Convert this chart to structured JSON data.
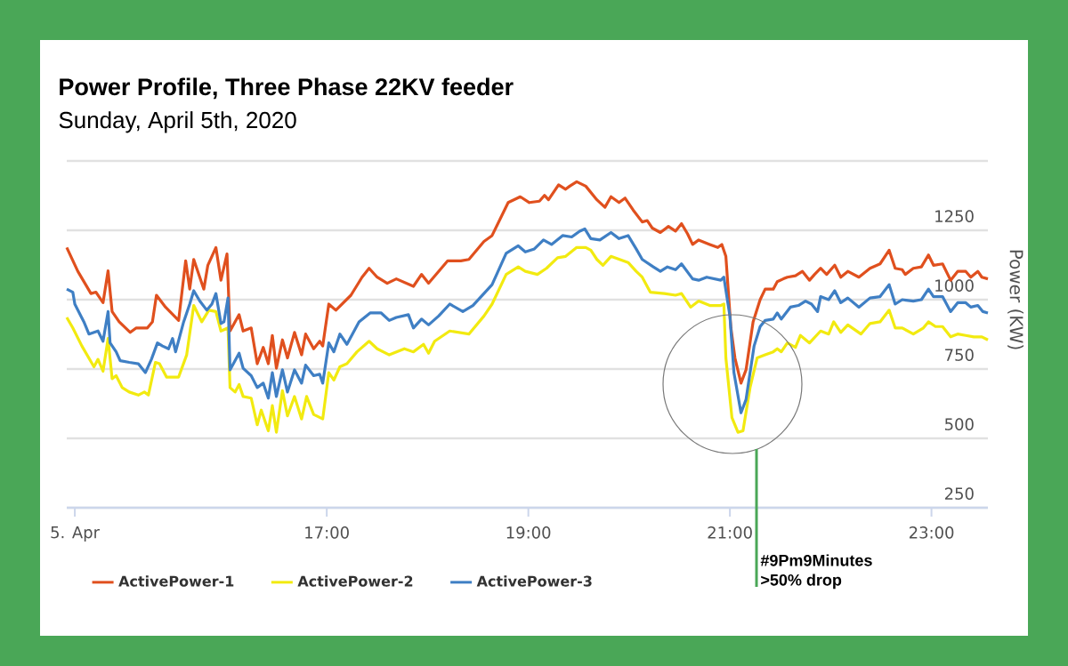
{
  "chart_data": {
    "type": "line",
    "title": "Power Profile, Three Phase 22KV feeder",
    "subtitle": "Sunday, April 5th, 2020",
    "ylabel": "Power (KW)",
    "xlim": [
      14.42,
      23.56
    ],
    "xticks": [
      {
        "value": 14.5,
        "label": "5. Apr"
      },
      {
        "value": 17,
        "label": "17:00"
      },
      {
        "value": 19,
        "label": "19:00"
      },
      {
        "value": 21,
        "label": "21:00"
      },
      {
        "value": 23,
        "label": "23:00"
      }
    ],
    "ylim": [
      250,
      1500
    ],
    "yticks": [
      250,
      500,
      750,
      1000,
      1250,
      {
        "value": 1500,
        "label": null
      }
    ],
    "grid": "y",
    "legend": "bottom",
    "marker": "none",
    "annotations": [
      "#9Pm9Minutes",
      ">50% drop"
    ],
    "series": [
      {
        "name": "ActivePower-1",
        "color": "#e0501e",
        "x": [
          14.42,
          14.53,
          14.66,
          14.71,
          14.78,
          14.83,
          14.87,
          14.94,
          15.05,
          15.11,
          15.22,
          15.27,
          15.31,
          15.4,
          15.53,
          15.6,
          15.64,
          15.68,
          15.78,
          15.82,
          15.9,
          15.95,
          16.01,
          16.04,
          16.13,
          16.17,
          16.25,
          16.31,
          16.37,
          16.42,
          16.46,
          16.5,
          16.56,
          16.61,
          16.68,
          16.75,
          16.79,
          16.87,
          16.93,
          16.96,
          17.02,
          17.09,
          17.24,
          17.35,
          17.42,
          17.5,
          17.6,
          17.69,
          17.86,
          17.94,
          18.01,
          18.11,
          18.2,
          18.33,
          18.41,
          18.56,
          18.64,
          18.8,
          18.92,
          19.01,
          19.11,
          19.16,
          19.2,
          19.3,
          19.37,
          19.41,
          19.48,
          19.57,
          19.68,
          19.76,
          19.82,
          19.9,
          19.96,
          20.04,
          20.13,
          20.18,
          20.23,
          20.31,
          20.39,
          20.46,
          20.52,
          20.58,
          20.63,
          20.69,
          20.8,
          20.88,
          20.92,
          20.96,
          21.01,
          21.05,
          21.11,
          21.16,
          21.23,
          21.3,
          21.35,
          21.43,
          21.47,
          21.53,
          21.57,
          21.65,
          21.72,
          21.79,
          21.84,
          21.9,
          21.96,
          22.04,
          22.1,
          22.17,
          22.28,
          22.39,
          22.49,
          22.58,
          22.64,
          22.71,
          22.74,
          22.82,
          22.9,
          22.97,
          23.02,
          23.11,
          23.19,
          23.26,
          23.34,
          23.39,
          23.46,
          23.5,
          23.56
        ],
        "values": [
          1188,
          1102,
          1022,
          1027,
          989,
          1104,
          957,
          920,
          882,
          898,
          898,
          920,
          1016,
          973,
          925,
          1140,
          1038,
          1145,
          1038,
          1124,
          1188,
          1070,
          1165,
          887,
          946,
          887,
          898,
          769,
          828,
          769,
          871,
          753,
          855,
          790,
          882,
          801,
          876,
          823,
          850,
          833,
          984,
          962,
          1016,
          1081,
          1113,
          1081,
          1059,
          1075,
          1048,
          1091,
          1059,
          1102,
          1140,
          1140,
          1145,
          1210,
          1231,
          1350,
          1371,
          1350,
          1355,
          1376,
          1360,
          1414,
          1398,
          1409,
          1425,
          1409,
          1360,
          1333,
          1371,
          1350,
          1366,
          1323,
          1280,
          1285,
          1258,
          1242,
          1264,
          1247,
          1274,
          1237,
          1199,
          1215,
          1199,
          1188,
          1199,
          1156,
          898,
          790,
          699,
          747,
          920,
          1000,
          1038,
          1038,
          1065,
          1075,
          1081,
          1086,
          1102,
          1070,
          1091,
          1113,
          1091,
          1124,
          1081,
          1102,
          1081,
          1113,
          1129,
          1178,
          1113,
          1108,
          1091,
          1113,
          1118,
          1161,
          1124,
          1129,
          1070,
          1102,
          1102,
          1081,
          1102,
          1081,
          1075
        ]
      },
      {
        "name": "ActivePower-2",
        "color": "#f2ea10",
        "x": [
          14.42,
          14.48,
          14.57,
          14.69,
          14.73,
          14.78,
          14.83,
          14.87,
          14.91,
          14.97,
          15.04,
          15.13,
          15.19,
          15.23,
          15.3,
          15.34,
          15.41,
          15.53,
          15.61,
          15.68,
          15.76,
          15.83,
          15.9,
          15.95,
          16.02,
          16.04,
          16.09,
          16.13,
          16.17,
          16.25,
          16.31,
          16.35,
          16.42,
          16.46,
          16.5,
          16.56,
          16.61,
          16.68,
          16.75,
          16.8,
          16.87,
          16.96,
          17.02,
          17.07,
          17.13,
          17.2,
          17.3,
          17.42,
          17.5,
          17.62,
          17.77,
          17.86,
          17.96,
          18.01,
          18.07,
          18.22,
          18.41,
          18.56,
          18.64,
          18.78,
          18.9,
          18.97,
          19.09,
          19.18,
          19.29,
          19.37,
          19.48,
          19.57,
          19.62,
          19.68,
          19.74,
          19.82,
          19.99,
          20.07,
          20.13,
          20.21,
          20.35,
          20.46,
          20.52,
          20.61,
          20.69,
          20.8,
          20.91,
          20.94,
          20.96,
          21.02,
          21.08,
          21.13,
          21.2,
          21.27,
          21.35,
          21.43,
          21.47,
          21.51,
          21.57,
          21.65,
          21.7,
          21.79,
          21.9,
          21.98,
          22.03,
          22.1,
          22.17,
          22.3,
          22.39,
          22.49,
          22.58,
          22.64,
          22.71,
          22.82,
          22.92,
          22.97,
          23.04,
          23.11,
          23.19,
          23.26,
          23.34,
          23.42,
          23.5,
          23.56
        ],
        "values": [
          936,
          898,
          833,
          758,
          785,
          742,
          860,
          715,
          726,
          683,
          667,
          656,
          667,
          656,
          774,
          769,
          721,
          721,
          801,
          979,
          920,
          962,
          957,
          887,
          898,
          683,
          667,
          694,
          651,
          645,
          549,
          602,
          527,
          618,
          522,
          672,
          581,
          651,
          570,
          651,
          586,
          570,
          737,
          710,
          758,
          769,
          812,
          850,
          823,
          801,
          823,
          812,
          839,
          807,
          850,
          887,
          876,
          941,
          984,
          1091,
          1118,
          1102,
          1091,
          1113,
          1151,
          1156,
          1188,
          1188,
          1178,
          1145,
          1124,
          1156,
          1134,
          1102,
          1081,
          1027,
          1022,
          1016,
          1022,
          973,
          995,
          979,
          979,
          984,
          790,
          575,
          522,
          527,
          683,
          790,
          801,
          812,
          823,
          812,
          844,
          828,
          871,
          844,
          887,
          876,
          920,
          882,
          909,
          876,
          914,
          920,
          962,
          898,
          898,
          876,
          898,
          920,
          903,
          903,
          866,
          876,
          871,
          866,
          866,
          855
        ]
      },
      {
        "name": "ActivePower-3",
        "color": "#3f7fc4",
        "x": [
          14.42,
          14.48,
          14.5,
          14.59,
          14.64,
          14.73,
          14.78,
          14.83,
          14.85,
          14.91,
          14.95,
          15.04,
          15.13,
          15.2,
          15.26,
          15.32,
          15.37,
          15.43,
          15.47,
          15.5,
          15.58,
          15.64,
          15.68,
          15.74,
          15.81,
          15.86,
          15.9,
          15.95,
          15.98,
          16.02,
          16.04,
          16.13,
          16.17,
          16.25,
          16.31,
          16.37,
          16.42,
          16.46,
          16.5,
          16.56,
          16.61,
          16.68,
          16.75,
          16.79,
          16.87,
          16.93,
          16.96,
          17.02,
          17.07,
          17.13,
          17.2,
          17.32,
          17.43,
          17.54,
          17.62,
          17.69,
          17.81,
          17.86,
          17.94,
          18.01,
          18.11,
          18.22,
          18.35,
          18.45,
          18.64,
          18.78,
          18.9,
          18.97,
          19.06,
          19.15,
          19.23,
          19.34,
          19.43,
          19.51,
          19.56,
          19.62,
          19.71,
          19.82,
          19.9,
          19.99,
          20.07,
          20.13,
          20.24,
          20.31,
          20.38,
          20.46,
          20.52,
          20.63,
          20.69,
          20.77,
          20.91,
          20.94,
          21.0,
          21.04,
          21.11,
          21.16,
          21.24,
          21.3,
          21.35,
          21.43,
          21.47,
          21.51,
          21.6,
          21.68,
          21.75,
          21.81,
          21.87,
          21.9,
          21.98,
          22.04,
          22.1,
          22.17,
          22.28,
          22.39,
          22.49,
          22.58,
          22.64,
          22.71,
          22.82,
          22.9,
          22.97,
          23.02,
          23.11,
          23.19,
          23.26,
          23.34,
          23.39,
          23.46,
          23.51,
          23.56
        ],
        "values": [
          1038,
          1027,
          984,
          920,
          876,
          887,
          850,
          957,
          844,
          812,
          780,
          774,
          769,
          737,
          785,
          844,
          833,
          823,
          860,
          812,
          920,
          984,
          1032,
          995,
          962,
          984,
          1022,
          914,
          920,
          1006,
          747,
          807,
          753,
          726,
          683,
          699,
          645,
          737,
          651,
          747,
          667,
          747,
          699,
          764,
          726,
          731,
          699,
          844,
          812,
          876,
          839,
          920,
          952,
          952,
          925,
          936,
          946,
          898,
          930,
          909,
          941,
          984,
          957,
          979,
          1054,
          1167,
          1194,
          1172,
          1183,
          1215,
          1199,
          1231,
          1226,
          1247,
          1255,
          1220,
          1215,
          1242,
          1220,
          1231,
          1183,
          1145,
          1118,
          1102,
          1118,
          1108,
          1129,
          1075,
          1070,
          1081,
          1070,
          1081,
          941,
          737,
          592,
          640,
          833,
          903,
          925,
          930,
          952,
          930,
          973,
          979,
          995,
          984,
          957,
          1011,
          1000,
          1032,
          989,
          1006,
          973,
          1006,
          1011,
          1054,
          984,
          1000,
          995,
          1000,
          1038,
          1011,
          1011,
          957,
          989,
          989,
          973,
          979,
          957,
          952
        ]
      }
    ]
  }
}
